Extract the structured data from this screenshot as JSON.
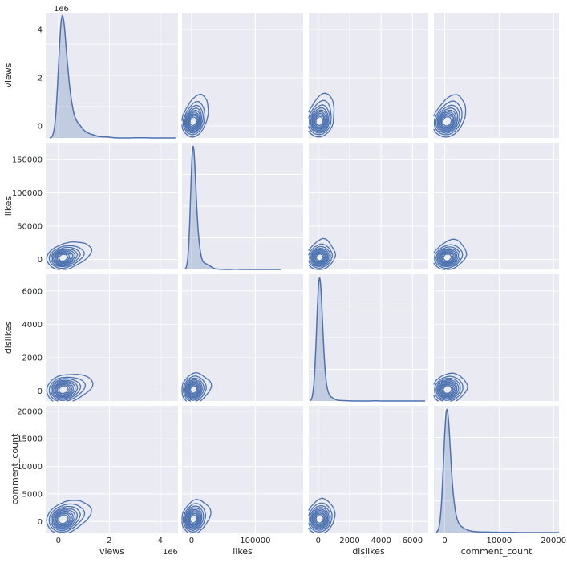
{
  "chart_data": {
    "type": "pairplot-kde",
    "variables": [
      "views",
      "likes",
      "dislikes",
      "comment_count"
    ],
    "colors": {
      "panel_bg": "#eaeaf2",
      "grid": "#ffffff",
      "line": "#4c72b0",
      "fill": "#4c72b0"
    },
    "axes": {
      "views": {
        "label": "views",
        "range": [
          -500000,
          4700000
        ],
        "ticks": [
          0,
          2000000,
          4000000
        ],
        "tick_labels": [
          "0",
          "2",
          "4"
        ],
        "offset_text": "1e6"
      },
      "likes": {
        "label": "likes",
        "range": [
          -15000,
          175000
        ],
        "ticks": [
          0,
          50000,
          100000,
          150000
        ],
        "tick_labels": [
          "0",
          "50000",
          "100000",
          "150000"
        ],
        "x_ticks": [
          0,
          100000
        ],
        "x_tick_labels": [
          "0",
          "100000"
        ]
      },
      "dislikes": {
        "label": "dislikes",
        "range": [
          -600,
          7000
        ],
        "ticks": [
          0,
          2000,
          4000,
          6000
        ],
        "tick_labels": [
          "0",
          "2000",
          "4000",
          "6000"
        ]
      },
      "comment_count": {
        "label": "comment_count",
        "range": [
          -2000,
          21000
        ],
        "ticks": [
          0,
          5000,
          10000,
          15000,
          20000
        ],
        "tick_labels": [
          "0",
          "5000",
          "10000",
          "15000",
          "20000"
        ],
        "x_ticks": [
          0,
          10000,
          20000
        ],
        "x_tick_labels": [
          "0",
          "10000",
          "20000"
        ]
      }
    },
    "diagonal_kde": {
      "views": {
        "peak_at": 250000,
        "peak_density_rel": 1.0,
        "tail_to": 4600000
      },
      "likes": {
        "peak_at": 4000,
        "peak_density_rel": 1.0,
        "tail_to": 140000
      },
      "dislikes": {
        "peak_at": 150,
        "peak_density_rel": 1.0,
        "tail_to": 6800
      },
      "comment_count": {
        "peak_at": 600,
        "peak_density_rel": 1.0,
        "tail_to": 21000
      }
    },
    "kde_contour_levels": 9
  }
}
